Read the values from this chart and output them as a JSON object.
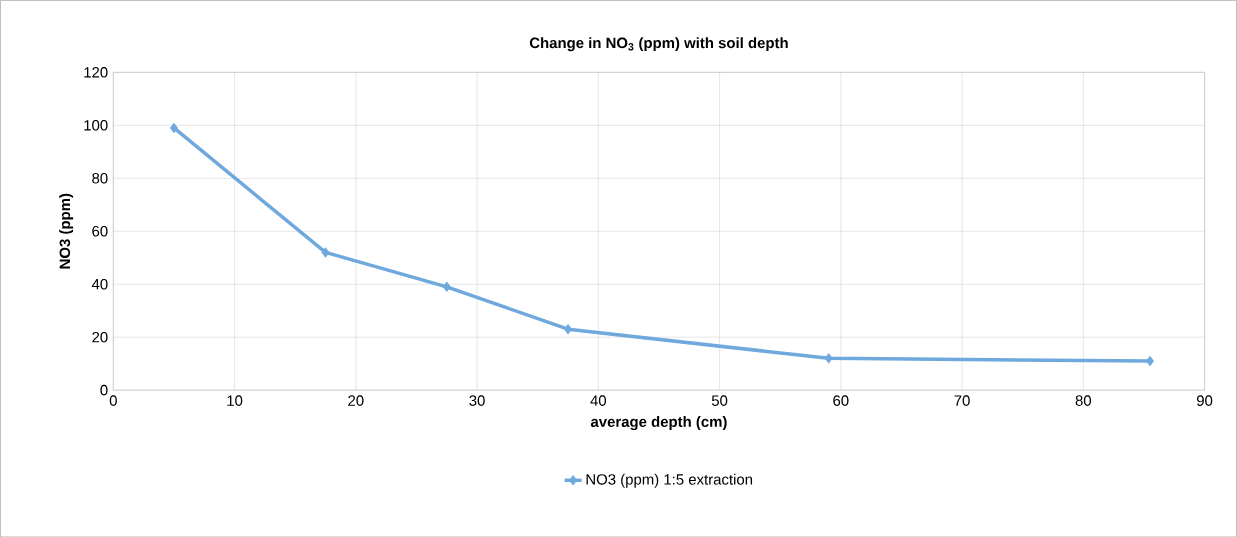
{
  "chart_data": {
    "type": "line",
    "title": "Change in NO$_{3}$ (ppm) with soil depth",
    "xlabel": "average depth (cm)",
    "ylabel": "NO3 (ppm)",
    "x": [
      5,
      17.5,
      27.5,
      37.5,
      59,
      85.5
    ],
    "series": [
      {
        "name": "NO3 (ppm) 1:5 extraction",
        "color": "#6fa8dc",
        "values": [
          99,
          52,
          39,
          23,
          12,
          11
        ]
      }
    ],
    "xlim": [
      0,
      90
    ],
    "xticks": [
      0,
      10,
      20,
      30,
      40,
      50,
      60,
      70,
      80,
      90
    ],
    "ylim": [
      0,
      120
    ],
    "yticks": [
      0,
      20,
      40,
      60,
      80,
      100,
      120
    ],
    "grid": true,
    "legend": "bottom",
    "marker": "diamond",
    "line_style": "solid"
  }
}
